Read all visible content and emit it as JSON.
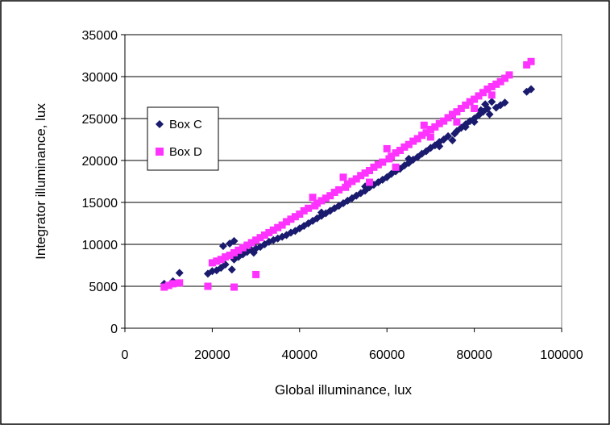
{
  "chart_data": {
    "type": "scatter",
    "title": "",
    "xlabel": "Global illuminance, lux",
    "ylabel": "Integrator illuminance, lux",
    "xlim": [
      0,
      100000
    ],
    "ylim": [
      0,
      35000
    ],
    "xticks": [
      0,
      20000,
      40000,
      60000,
      80000,
      100000
    ],
    "yticks": [
      0,
      5000,
      10000,
      15000,
      20000,
      25000,
      30000,
      35000
    ],
    "grid": "horizontal",
    "legend_position": "left-middle",
    "series": [
      {
        "name": "Box C",
        "color": "#1a1a6e",
        "marker": "diamond",
        "points": [
          [
            9000,
            5300
          ],
          [
            10500,
            5300
          ],
          [
            11000,
            5600
          ],
          [
            12500,
            6600
          ],
          [
            19000,
            6500
          ],
          [
            20000,
            6800
          ],
          [
            21000,
            6900
          ],
          [
            22000,
            7200
          ],
          [
            23000,
            7600
          ],
          [
            22500,
            9800
          ],
          [
            24000,
            10100
          ],
          [
            25000,
            10400
          ],
          [
            24500,
            7000
          ],
          [
            25000,
            8200
          ],
          [
            26000,
            8500
          ],
          [
            27000,
            8800
          ],
          [
            28000,
            9100
          ],
          [
            29000,
            9300
          ],
          [
            29500,
            9000
          ],
          [
            30000,
            9500
          ],
          [
            31000,
            9700
          ],
          [
            32000,
            10000
          ],
          [
            33000,
            10300
          ],
          [
            34000,
            10500
          ],
          [
            35000,
            10700
          ],
          [
            36000,
            10900
          ],
          [
            37000,
            11100
          ],
          [
            38000,
            11400
          ],
          [
            39000,
            11600
          ],
          [
            40000,
            11900
          ],
          [
            41000,
            12200
          ],
          [
            42000,
            12500
          ],
          [
            43000,
            12800
          ],
          [
            44000,
            13100
          ],
          [
            45000,
            13400
          ],
          [
            46000,
            13700
          ],
          [
            47000,
            14000
          ],
          [
            48000,
            14300
          ],
          [
            49000,
            14600
          ],
          [
            50000,
            14900
          ],
          [
            51000,
            15200
          ],
          [
            52000,
            15500
          ],
          [
            53000,
            15800
          ],
          [
            54000,
            16100
          ],
          [
            55000,
            16400
          ],
          [
            56000,
            16800
          ],
          [
            57000,
            17100
          ],
          [
            58000,
            17400
          ],
          [
            59000,
            17700
          ],
          [
            60000,
            18000
          ],
          [
            61000,
            18400
          ],
          [
            62000,
            18700
          ],
          [
            63000,
            19000
          ],
          [
            64000,
            19400
          ],
          [
            65000,
            19700
          ],
          [
            66000,
            20100
          ],
          [
            67000,
            20400
          ],
          [
            68000,
            20800
          ],
          [
            69000,
            21100
          ],
          [
            70000,
            21500
          ],
          [
            71000,
            21800
          ],
          [
            72000,
            22200
          ],
          [
            73000,
            22500
          ],
          [
            74000,
            22900
          ],
          [
            75000,
            22400
          ],
          [
            75500,
            23200
          ],
          [
            76000,
            23500
          ],
          [
            77000,
            23900
          ],
          [
            78000,
            24300
          ],
          [
            79000,
            24700
          ],
          [
            80000,
            25000
          ],
          [
            81000,
            25400
          ],
          [
            82000,
            25800
          ],
          [
            82500,
            26700
          ],
          [
            83000,
            26200
          ],
          [
            84000,
            27000
          ],
          [
            85000,
            26300
          ],
          [
            86000,
            26600
          ],
          [
            87000,
            26900
          ],
          [
            92000,
            28200
          ],
          [
            93000,
            28500
          ],
          [
            45000,
            13800
          ],
          [
            55000,
            16900
          ],
          [
            65000,
            20200
          ],
          [
            72000,
            21700
          ],
          [
            78000,
            24000
          ],
          [
            80000,
            24600
          ],
          [
            81500,
            26000
          ],
          [
            83500,
            25500
          ]
        ]
      },
      {
        "name": "Box D",
        "color": "#ff33ff",
        "marker": "square",
        "points": [
          [
            9000,
            4900
          ],
          [
            10000,
            5100
          ],
          [
            11000,
            5300
          ],
          [
            12500,
            5400
          ],
          [
            19000,
            5000
          ],
          [
            25000,
            4900
          ],
          [
            30000,
            6400
          ],
          [
            20000,
            7800
          ],
          [
            21000,
            8000
          ],
          [
            22000,
            8200
          ],
          [
            23000,
            8500
          ],
          [
            24000,
            8700
          ],
          [
            25000,
            9000
          ],
          [
            26000,
            9300
          ],
          [
            27000,
            9600
          ],
          [
            28000,
            9900
          ],
          [
            29000,
            10200
          ],
          [
            30000,
            10500
          ],
          [
            31000,
            10800
          ],
          [
            32000,
            11100
          ],
          [
            33000,
            11400
          ],
          [
            34000,
            11700
          ],
          [
            35000,
            12000
          ],
          [
            36000,
            12300
          ],
          [
            37000,
            12700
          ],
          [
            38000,
            13000
          ],
          [
            39000,
            13300
          ],
          [
            40000,
            13600
          ],
          [
            41000,
            14000
          ],
          [
            42000,
            14300
          ],
          [
            43000,
            15600
          ],
          [
            43500,
            14600
          ],
          [
            44000,
            14900
          ],
          [
            45000,
            15200
          ],
          [
            46000,
            15500
          ],
          [
            47000,
            15800
          ],
          [
            48000,
            16200
          ],
          [
            49000,
            16500
          ],
          [
            50000,
            18000
          ],
          [
            50500,
            16800
          ],
          [
            51000,
            17200
          ],
          [
            52000,
            17500
          ],
          [
            53000,
            17800
          ],
          [
            54000,
            18200
          ],
          [
            55000,
            18500
          ],
          [
            56000,
            18800
          ],
          [
            57000,
            19200
          ],
          [
            58000,
            19500
          ],
          [
            59000,
            19800
          ],
          [
            60000,
            21400
          ],
          [
            60500,
            20200
          ],
          [
            61000,
            20500
          ],
          [
            62000,
            20900
          ],
          [
            63000,
            21200
          ],
          [
            64000,
            21600
          ],
          [
            65000,
            21900
          ],
          [
            66000,
            22300
          ],
          [
            67000,
            22600
          ],
          [
            68000,
            23000
          ],
          [
            68500,
            24200
          ],
          [
            69000,
            23300
          ],
          [
            70000,
            23700
          ],
          [
            71000,
            24000
          ],
          [
            72000,
            24400
          ],
          [
            73000,
            24700
          ],
          [
            74000,
            25100
          ],
          [
            75000,
            25500
          ],
          [
            76000,
            25800
          ],
          [
            77000,
            26200
          ],
          [
            78000,
            26600
          ],
          [
            79000,
            27000
          ],
          [
            80000,
            27300
          ],
          [
            81000,
            27700
          ],
          [
            82000,
            28100
          ],
          [
            83000,
            28500
          ],
          [
            84000,
            28800
          ],
          [
            85000,
            29100
          ],
          [
            86000,
            29400
          ],
          [
            87000,
            29800
          ],
          [
            88000,
            30200
          ],
          [
            92000,
            31400
          ],
          [
            93000,
            31800
          ],
          [
            56000,
            17400
          ],
          [
            62000,
            19200
          ],
          [
            70000,
            22800
          ],
          [
            76000,
            24600
          ],
          [
            80000,
            26200
          ],
          [
            84000,
            27800
          ]
        ]
      }
    ]
  }
}
